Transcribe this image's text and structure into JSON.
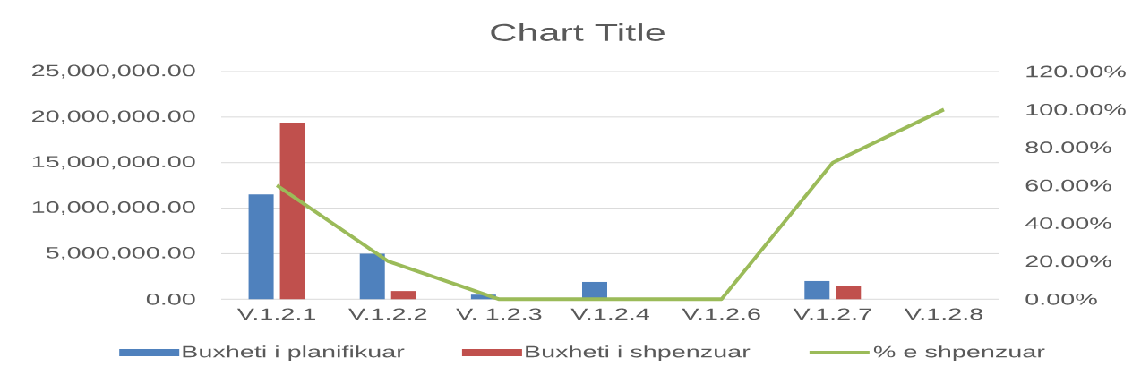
{
  "chart_data": {
    "type": "bar",
    "title": "Chart Title",
    "categories": [
      "V.1.2.1",
      "V.1.2.2",
      "V. 1.2.3",
      "V.1.2.4",
      "V.1.2.6",
      "V.1.2.7",
      "V.1.2.8"
    ],
    "series": [
      {
        "name": "Buxheti i planifikuar",
        "color": "#4f81bd",
        "values": [
          11500000,
          5000000,
          500000,
          1900000,
          null,
          2000000,
          null
        ]
      },
      {
        "name": "Buxheti i shpenzuar",
        "color": "#c0504d",
        "values": [
          19400000,
          900000,
          null,
          null,
          null,
          1500000,
          null
        ]
      },
      {
        "name": "% e shpenzuar",
        "type": "line",
        "axis": "y2",
        "color": "#9bbb59",
        "line_style": "solid",
        "values": [
          60,
          20,
          0,
          0,
          0,
          72,
          100
        ]
      }
    ],
    "ylim": [
      0,
      25000000
    ],
    "yticks": [
      {
        "value": 0,
        "label": "0.00"
      },
      {
        "value": 5000000,
        "label": "5,000,000.00"
      },
      {
        "value": 10000000,
        "label": "10,000,000.00"
      },
      {
        "value": 15000000,
        "label": "15,000,000.00"
      },
      {
        "value": 20000000,
        "label": "20,000,000.00"
      },
      {
        "value": 25000000,
        "label": "25,000,000.00"
      }
    ],
    "y2lim": [
      0,
      120
    ],
    "y2ticks": [
      {
        "value": 0,
        "label": "0.00%"
      },
      {
        "value": 20,
        "label": "20.00%"
      },
      {
        "value": 40,
        "label": "40.00%"
      },
      {
        "value": 60,
        "label": "60.00%"
      },
      {
        "value": 80,
        "label": "80.00%"
      },
      {
        "value": 100,
        "label": "100.00%"
      },
      {
        "value": 120,
        "label": "120.00%"
      }
    ],
    "grid": "y",
    "legend": "bottom"
  }
}
